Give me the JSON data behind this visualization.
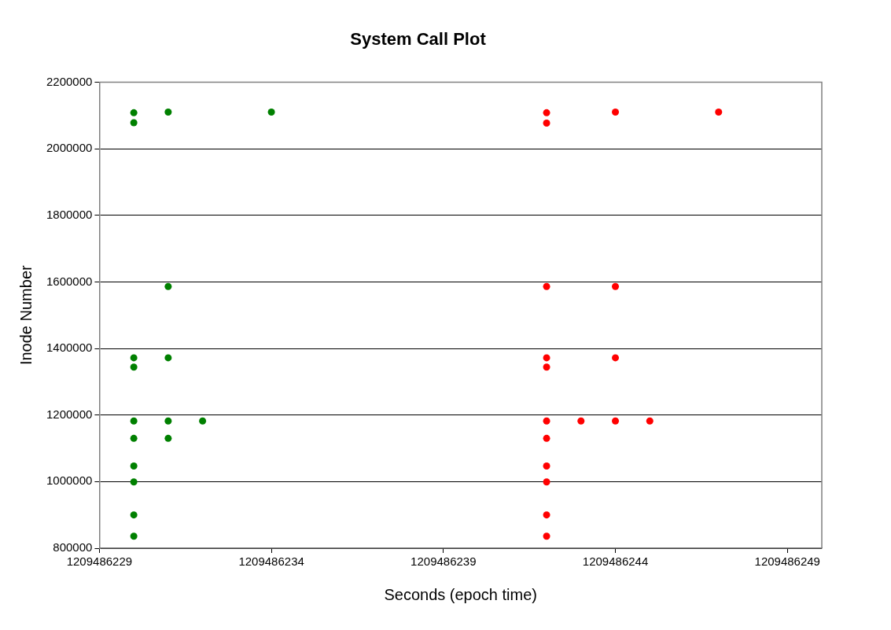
{
  "chart_data": {
    "type": "scatter",
    "title": "System Call Plot",
    "xlabel": "Seconds (epoch time)",
    "ylabel": "Inode Number",
    "xlim": [
      1209486229,
      1209486250
    ],
    "xticks": [
      1209486229,
      1209486234,
      1209486239,
      1209486244,
      1209486249
    ],
    "ylim": [
      800000,
      2200000
    ],
    "yticks": [
      800000,
      1000000,
      1200000,
      1400000,
      1600000,
      1800000,
      2000000,
      2200000
    ],
    "grid": "y",
    "legend": false,
    "marker": "circle",
    "series": [
      {
        "color": "#008000",
        "x": [
          1209486230,
          1209486230,
          1209486230,
          1209486230,
          1209486230,
          1209486230,
          1209486230,
          1209486230,
          1209486230,
          1209486230,
          1209486231,
          1209486231,
          1209486231,
          1209486231,
          1209486231,
          1209486232,
          1209486234
        ],
        "values": [
          2108000,
          2078000,
          1372000,
          1344000,
          1182000,
          1130000,
          1047000,
          999000,
          900000,
          836000,
          2110000,
          1586000,
          1372000,
          1182000,
          1130000,
          1182000,
          2110000
        ]
      },
      {
        "color": "#ff0000",
        "x": [
          1209486242,
          1209486242,
          1209486242,
          1209486242,
          1209486242,
          1209486242,
          1209486242,
          1209486242,
          1209486242,
          1209486242,
          1209486242,
          1209486243,
          1209486244,
          1209486244,
          1209486244,
          1209486244,
          1209486245,
          1209486247
        ],
        "values": [
          2108000,
          2077000,
          1586000,
          1372000,
          1344000,
          1182000,
          1130000,
          1047000,
          999000,
          900000,
          836000,
          1182000,
          2110000,
          1586000,
          1372000,
          1182000,
          1182000,
          2110000
        ]
      }
    ]
  }
}
